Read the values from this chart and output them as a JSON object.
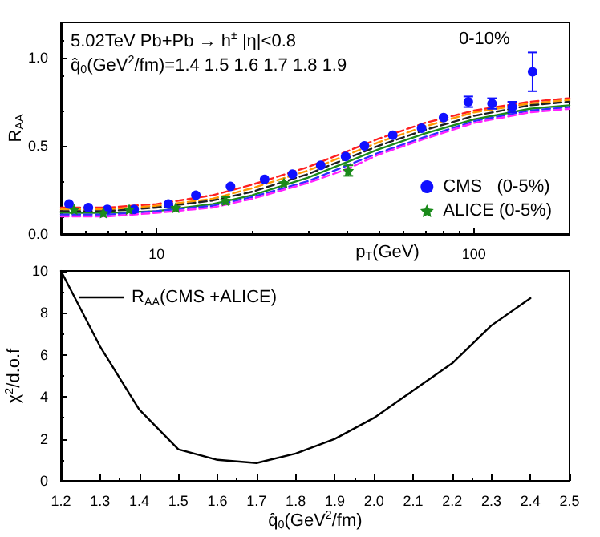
{
  "chart_data": [
    {
      "type": "line",
      "xlabel": "p$_{T}$(GeV)",
      "ylabel": "R$_{AA}$",
      "annotations": [
        "5.02TeV Pb+Pb → h$^{±}$ |η|<0.8",
        "0-10%",
        "q̂$_{0}$(GeV$^{2}$/fm)=1.4 1.5 1.6 1.7 1.8 1.9"
      ],
      "log": "x",
      "xlim": [
        5,
        200
      ],
      "xticks": [
        10,
        100
      ],
      "ylim": [
        0,
        1.2
      ],
      "yticks": [
        {
          "value": 0,
          "label": "0.0"
        },
        {
          "value": 0.5,
          "label": "0.5"
        },
        {
          "value": 1,
          "label": "1.0"
        }
      ],
      "grid": false,
      "legend": "bottom right",
      "series": [
        {
          "color": "#ff2020",
          "line_style": "dashed",
          "marker": "none",
          "x": [
            5,
            7,
            10,
            15,
            20,
            30,
            40,
            50,
            70,
            100,
            150,
            200
          ],
          "values": [
            0.15,
            0.15,
            0.17,
            0.22,
            0.28,
            0.38,
            0.47,
            0.54,
            0.63,
            0.7,
            0.75,
            0.77
          ]
        },
        {
          "color": "#ff9900",
          "line_style": "dashed",
          "marker": "none",
          "x": [
            5,
            7,
            10,
            15,
            20,
            30,
            40,
            50,
            70,
            100,
            150,
            200
          ],
          "values": [
            0.14,
            0.14,
            0.16,
            0.2,
            0.26,
            0.36,
            0.45,
            0.52,
            0.61,
            0.69,
            0.74,
            0.76
          ]
        },
        {
          "color": "#202020",
          "line_style": "dashed",
          "marker": "none",
          "x": [
            5,
            7,
            10,
            15,
            20,
            30,
            40,
            50,
            70,
            100,
            150,
            200
          ],
          "values": [
            0.13,
            0.13,
            0.15,
            0.19,
            0.24,
            0.34,
            0.43,
            0.5,
            0.59,
            0.67,
            0.73,
            0.75
          ]
        },
        {
          "color": "#1a8a1a",
          "line_style": "solid",
          "marker": "none",
          "x": [
            5,
            7,
            10,
            15,
            20,
            30,
            40,
            50,
            70,
            100,
            150,
            200
          ],
          "values": [
            0.12,
            0.12,
            0.13,
            0.17,
            0.22,
            0.32,
            0.41,
            0.48,
            0.57,
            0.65,
            0.71,
            0.73
          ]
        },
        {
          "color": "#3030ff",
          "line_style": "dashed",
          "marker": "none",
          "x": [
            5,
            7,
            10,
            15,
            20,
            30,
            40,
            50,
            70,
            100,
            150,
            200
          ],
          "values": [
            0.11,
            0.11,
            0.13,
            0.16,
            0.21,
            0.3,
            0.39,
            0.46,
            0.55,
            0.64,
            0.7,
            0.72
          ]
        },
        {
          "color": "#ff20ff",
          "line_style": "dashed",
          "marker": "none",
          "x": [
            5,
            7,
            10,
            15,
            20,
            30,
            40,
            50,
            70,
            100,
            150,
            200
          ],
          "values": [
            0.1,
            0.1,
            0.12,
            0.15,
            0.2,
            0.29,
            0.37,
            0.45,
            0.54,
            0.63,
            0.69,
            0.71
          ]
        },
        {
          "type": "scatter",
          "name": "CMS   (0-5%)",
          "color": "#1010ff",
          "marker": "circle",
          "x": [
            5.3,
            6.1,
            7.0,
            8.5,
            10.9,
            13.3,
            17.1,
            21.9,
            26.8,
            32.9,
            39.4,
            45.2,
            55.5,
            68.4,
            80.2,
            96,
            114,
            132,
            153
          ],
          "values": [
            0.17,
            0.15,
            0.14,
            0.14,
            0.17,
            0.22,
            0.27,
            0.31,
            0.34,
            0.39,
            0.44,
            0.5,
            0.56,
            0.6,
            0.66,
            0.75,
            0.74,
            0.72,
            0.92
          ],
          "errors": [
            null,
            null,
            null,
            null,
            null,
            null,
            null,
            null,
            null,
            null,
            null,
            null,
            null,
            null,
            null,
            0.03,
            0.03,
            0.03,
            [
              0.81,
              1.03
            ]
          ]
        },
        {
          "type": "scatter",
          "name": "ALICE (0-5%)",
          "color": "#1a8a1a",
          "marker": "star",
          "x": [
            5.5,
            6.8,
            8.2,
            11.5,
            16.5,
            25.2,
            40.2
          ],
          "values": [
            0.14,
            0.12,
            0.14,
            0.15,
            0.19,
            0.29,
            0.36
          ],
          "errors": [
            null,
            null,
            null,
            null,
            0.02,
            null,
            0.03
          ]
        }
      ]
    },
    {
      "type": "line",
      "xlabel": "q̂$_{0}$(GeV$^{2}$/fm)",
      "ylabel": "χ$^{2}$/d.o.f",
      "xlim": [
        1.2,
        2.5
      ],
      "xticks": [
        1.2,
        1.3,
        1.4,
        1.5,
        1.6,
        1.7,
        1.8,
        1.9,
        {
          "value": 2,
          "label": "2.0"
        },
        2.1,
        2.2,
        2.3,
        2.4,
        2.5
      ],
      "ylim": [
        0,
        10
      ],
      "yticks": [
        0,
        2,
        4,
        6,
        8,
        10
      ],
      "grid": false,
      "legend": "top left",
      "marker": "none",
      "series": [
        {
          "name": "R$_{AA}$(CMS +ALICE)",
          "color": "#000000",
          "line_style": "solid",
          "x": [
            1.2,
            1.3,
            1.4,
            1.5,
            1.6,
            1.7,
            1.8,
            1.9,
            2.0,
            2.1,
            2.2,
            2.3,
            2.4
          ],
          "values": [
            10,
            6.4,
            3.4,
            1.5,
            1.0,
            0.85,
            1.3,
            2.0,
            3.0,
            4.3,
            5.6,
            7.4,
            8.7
          ]
        }
      ]
    }
  ]
}
